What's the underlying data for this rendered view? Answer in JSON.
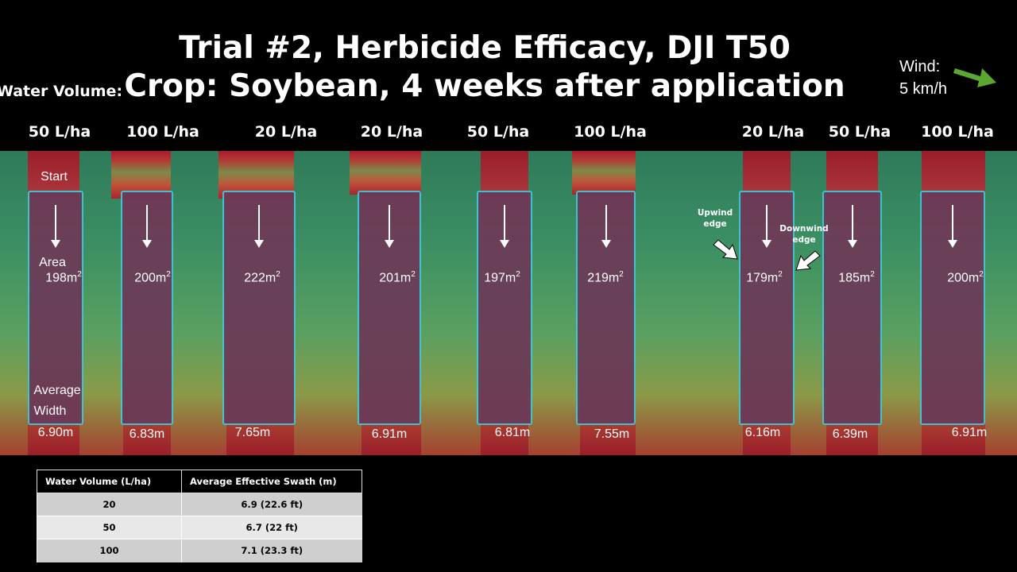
{
  "title": {
    "line1": "Trial #2, Herbicide Efficacy, DJI T50",
    "line2": "Crop: Soybean, 4 weeks after application"
  },
  "wind": {
    "label": "Wind:",
    "speed": "5 km/h",
    "arrow_color": "#5aa832",
    "icon": "wind-direction-arrow-icon"
  },
  "water_volume_label": "Water Volume:",
  "start_label": "Start",
  "area_label": "Area",
  "width_label_line1": "Average",
  "width_label_line2": "Width",
  "annotations": {
    "upwind": "Upwind edge",
    "downwind": "Downwind edge"
  },
  "plots": [
    {
      "volume": "50 L/ha",
      "area": "198",
      "width": "6.90m"
    },
    {
      "volume": "100 L/ha",
      "area": "200",
      "width": "6.83m"
    },
    {
      "volume": "20 L/ha",
      "area": "222",
      "width": "7.65m"
    },
    {
      "volume": "20 L/ha",
      "area": "201",
      "width": "6.91m"
    },
    {
      "volume": "50 L/ha",
      "area": "197",
      "width": "6.81m"
    },
    {
      "volume": "100 L/ha",
      "area": "219",
      "width": "7.55m"
    },
    {
      "volume": "20 L/ha",
      "area": "179",
      "width": "6.16m"
    },
    {
      "volume": "50 L/ha",
      "area": "185",
      "width": "6.39m"
    },
    {
      "volume": "100 L/ha",
      "area": "200",
      "width": "6.91m"
    }
  ],
  "area_unit": "m",
  "area_unit_sup": "2",
  "table": {
    "headers": [
      "Water Volume (L/ha)",
      "Average Effective Swath (m)"
    ],
    "rows": [
      [
        "20",
        "6.9 (22.6 ft)"
      ],
      [
        "50",
        "6.7 (22 ft)"
      ],
      [
        "100",
        "7.1 (23.3 ft)"
      ]
    ]
  }
}
